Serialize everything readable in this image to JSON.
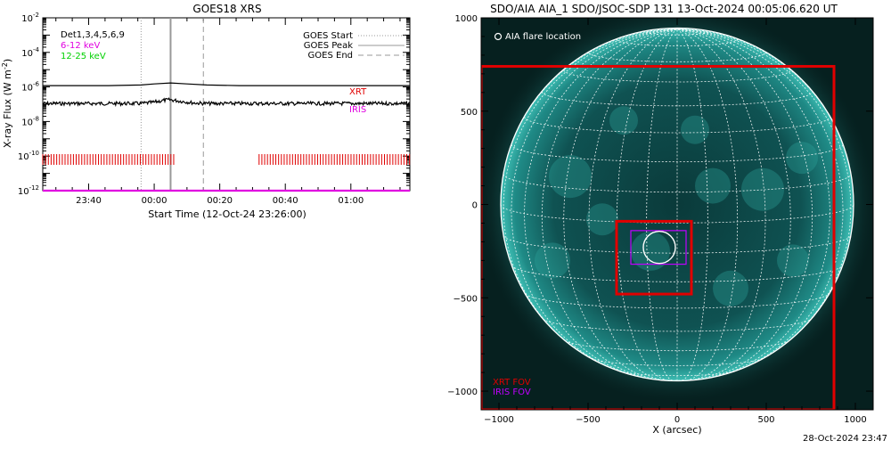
{
  "stamp": "28-Oct-2024 23:47",
  "chart_data": [
    {
      "type": "line",
      "title": "GOES18 XRS",
      "ylabel_main": "X-ray Flux (W m",
      "ylabel_sup": "-2",
      "ylabel_close": ")",
      "xlabel": "Start Time (12-Oct-24 23:26:00)",
      "yscale": "log",
      "ylim": [
        1e-12,
        0.01
      ],
      "xlim_minutes": [
        0,
        112
      ],
      "y_ticks": [
        {
          "base": "10",
          "exp": "-2",
          "value": 0.01
        },
        {
          "base": "10",
          "exp": "-4",
          "value": 0.0001
        },
        {
          "base": "10",
          "exp": "-6",
          "value": 1e-06
        },
        {
          "base": "10",
          "exp": "-8",
          "value": 1e-08
        },
        {
          "base": "10",
          "exp": "-10",
          "value": 1e-10
        },
        {
          "base": "10",
          "exp": "-12",
          "value": 1e-12
        }
      ],
      "x_ticks": [
        {
          "label": "23:40",
          "minute": 14
        },
        {
          "label": "00:00",
          "minute": 34
        },
        {
          "label": "00:20",
          "minute": 54
        },
        {
          "label": "00:40",
          "minute": 74
        },
        {
          "label": "01:00",
          "minute": 94
        }
      ],
      "channel_legend": [
        {
          "text": "Det1,3,4,5,6,9",
          "color": "#000000"
        },
        {
          "text": "6-12 keV",
          "color": "#e000e0"
        },
        {
          "text": "12-25 keV",
          "color": "#00d000"
        }
      ],
      "event_legend": [
        {
          "text": "GOES Start",
          "style": "dotted"
        },
        {
          "text": "GOES Peak",
          "style": "solid"
        },
        {
          "text": "GOES End",
          "style": "dashed"
        }
      ],
      "event_lines_minutes": {
        "start": 30,
        "peak": 39,
        "end": 49
      },
      "series": [
        {
          "name": "XRS long",
          "color": "#000000",
          "x": [
            0,
            10,
            20,
            30,
            34,
            39,
            44,
            50,
            60,
            70,
            80,
            90,
            100,
            112
          ],
          "y": [
            1.2e-06,
            1.2e-06,
            1.2e-06,
            1.3e-06,
            1.5e-06,
            1.7e-06,
            1.5e-06,
            1.3e-06,
            1.2e-06,
            1.2e-06,
            1.2e-06,
            1.2e-06,
            1.2e-06,
            1.2e-06
          ]
        },
        {
          "name": "XRS short",
          "color": "#000000",
          "x": [
            0,
            10,
            20,
            30,
            34,
            37,
            39,
            42,
            46,
            50,
            60,
            70,
            80,
            90,
            100,
            112
          ],
          "y": [
            1.1e-07,
            1.1e-07,
            1.1e-07,
            1.1e-07,
            1.3e-07,
            1.7e-07,
            1.8e-07,
            1.5e-07,
            1.2e-07,
            1.1e-07,
            1.1e-07,
            1.1e-07,
            1.1e-07,
            1.1e-07,
            1.1e-07,
            1.1e-07
          ]
        },
        {
          "name": "IRIS level",
          "color": "#e000e0",
          "x": [
            0,
            112
          ],
          "y": [
            1e-12,
            1e-12
          ]
        }
      ],
      "instrument_labels": [
        {
          "text": "XRT",
          "color": "#e00000"
        },
        {
          "text": "IRIS",
          "color": "#e000e0"
        }
      ],
      "xrt_coverage_minutes": [
        [
          0,
          40.5
        ],
        [
          66,
          112
        ]
      ]
    },
    {
      "type": "image",
      "title": "SDO/AIA AIA_1 SDO/JSOC-SDP 131 13-Oct-2024 00:05:06.620 UT",
      "xlabel": "X (arcsec)",
      "xlim": [
        -1100,
        1100
      ],
      "ylim": [
        -1100,
        1000
      ],
      "x_ticks": [
        -1000,
        -500,
        0,
        500,
        1000
      ],
      "y_ticks": [
        1000,
        500,
        0,
        -500,
        -1000
      ],
      "flare_legend": "AIA flare location",
      "fov_legend": [
        {
          "text": "XRT FOV",
          "color": "#e00000"
        },
        {
          "text": "IRIS FOV",
          "color": "#c000ff"
        }
      ],
      "solar_radius_arcsec": 990,
      "xrt_fov_large": {
        "x": [
          -1100,
          880
        ],
        "y": [
          -1100,
          740
        ]
      },
      "xrt_fov_small": {
        "x": [
          -340,
          80
        ],
        "y": [
          -480,
          -90
        ]
      },
      "iris_fov": {
        "x": [
          -260,
          50
        ],
        "y": [
          -320,
          -140
        ]
      },
      "flare_location": {
        "x": -100,
        "y": -230,
        "radius": 90
      }
    }
  ]
}
